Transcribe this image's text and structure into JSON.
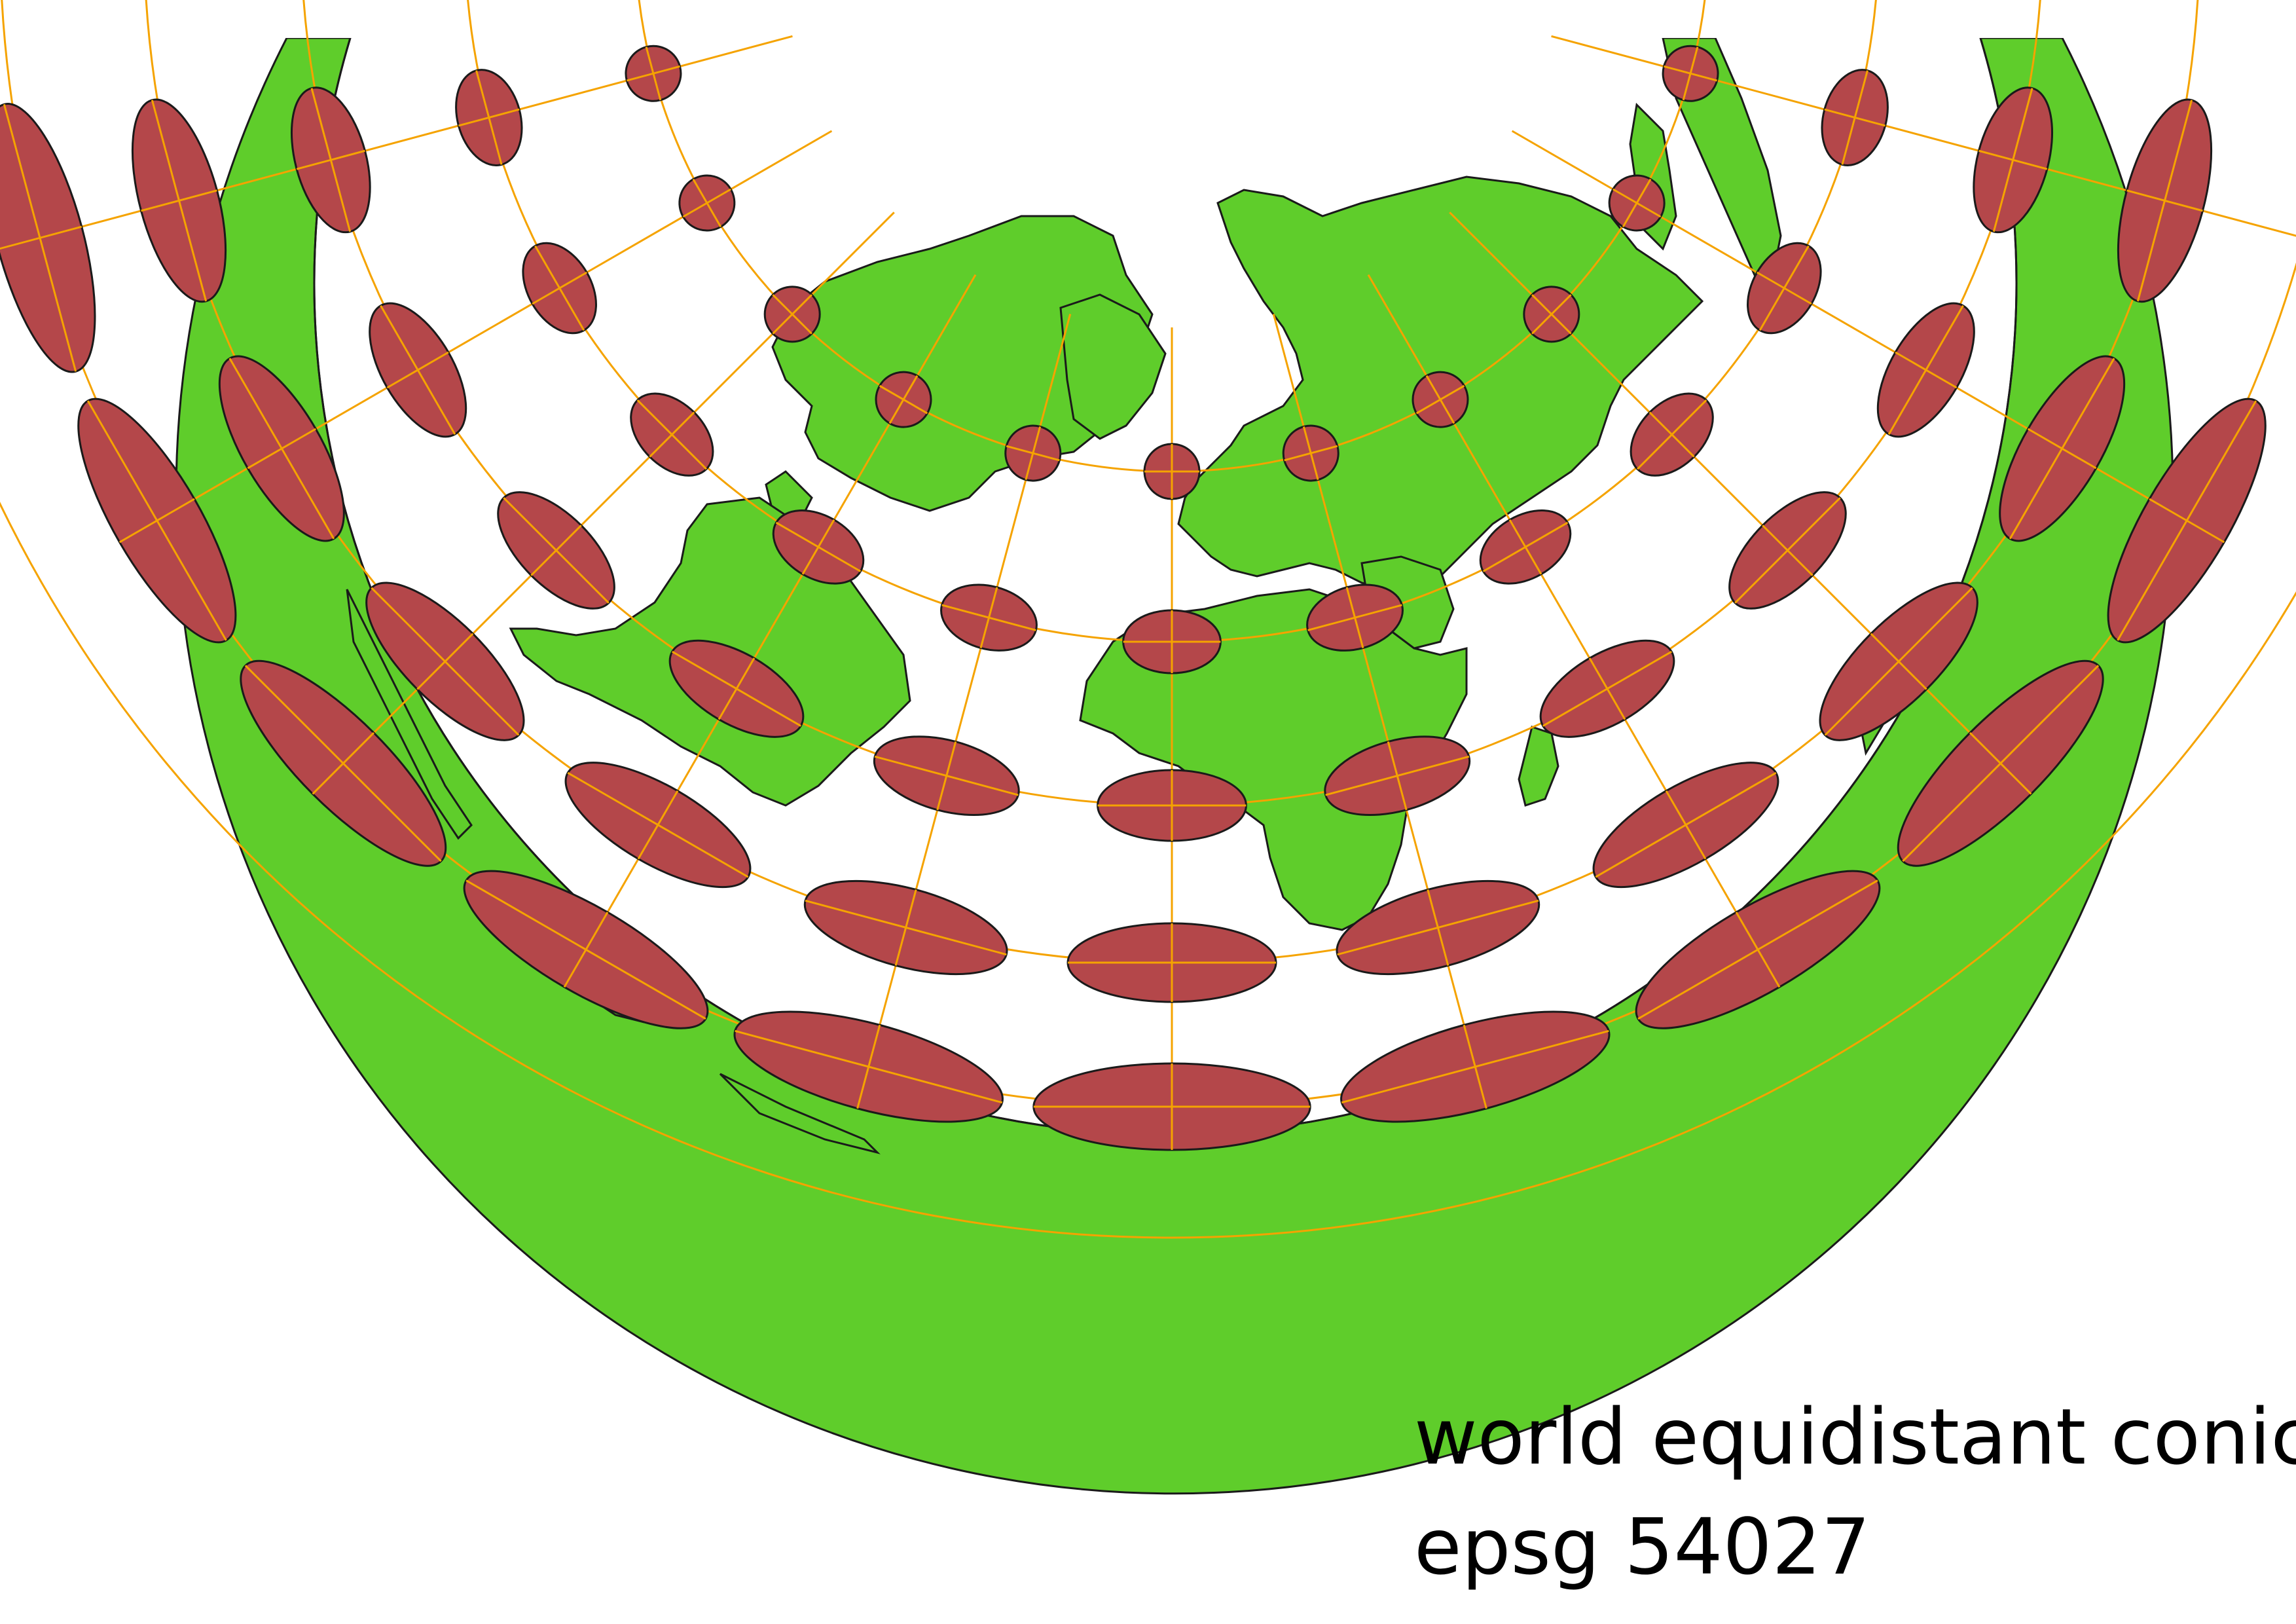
{
  "map": {
    "caption_line1": "world equidistant conic",
    "caption_line2": "epsg 54027",
    "colors": {
      "land": "#5fcd2b",
      "ocean": "#ffffff",
      "indicatrix_fill": "#b4474a",
      "graticule": "#f5a300",
      "outline": "#1a1a1a"
    },
    "graticule_visible": true,
    "tissot_indicatrix_visible": true
  }
}
